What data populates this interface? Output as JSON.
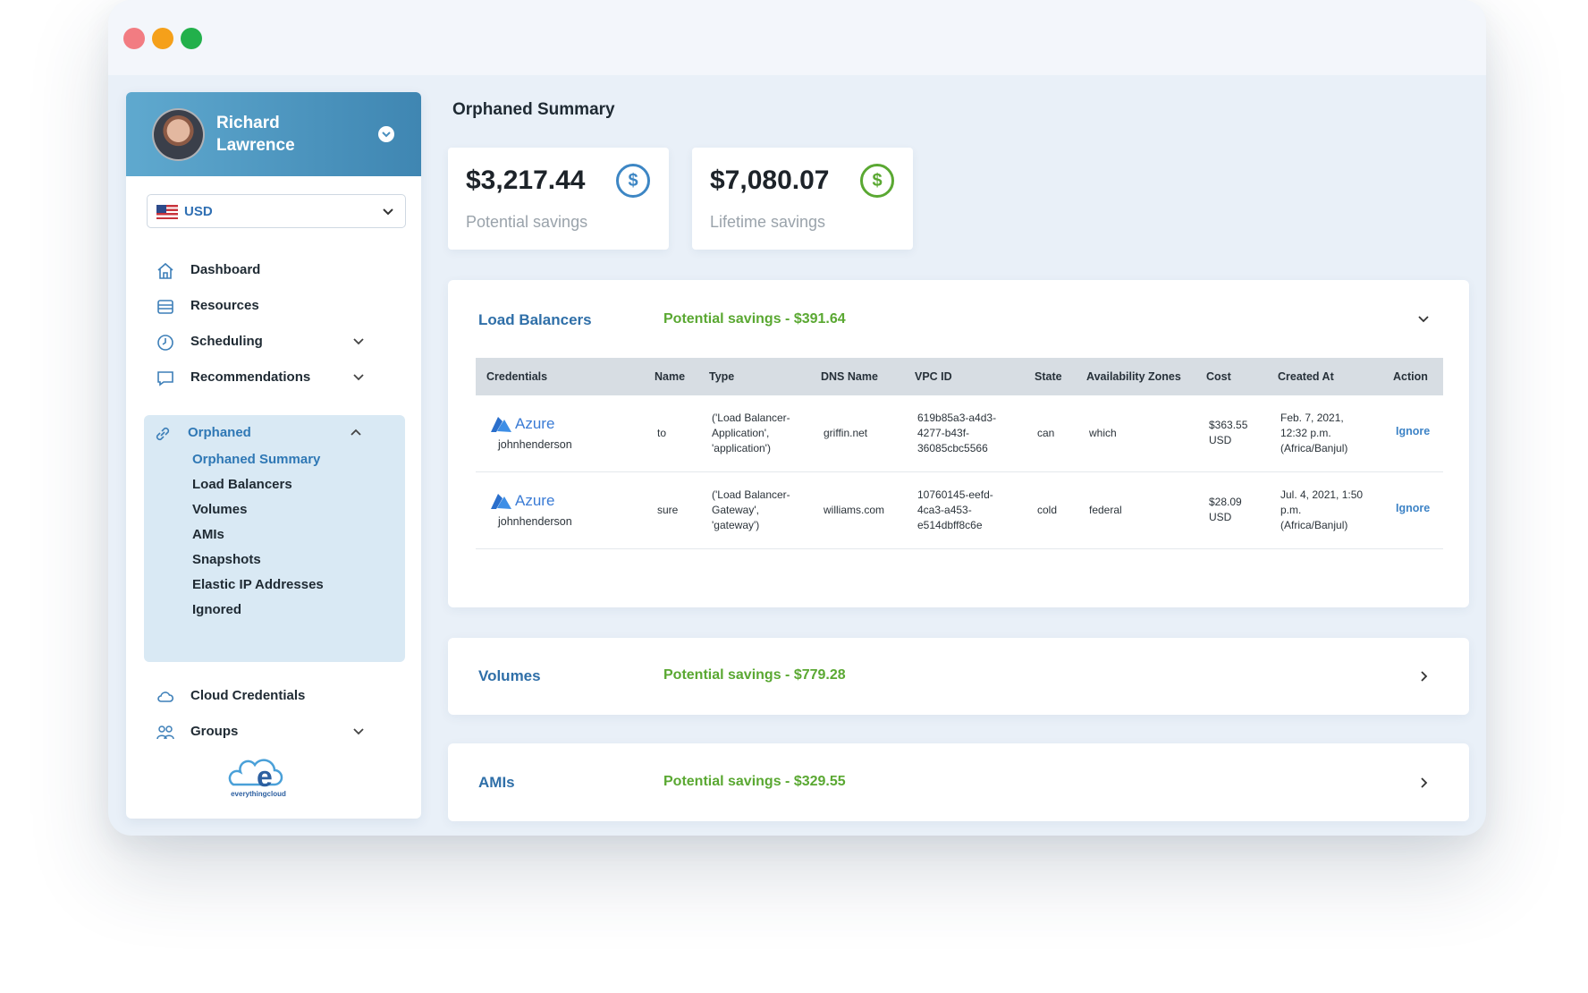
{
  "user": {
    "name": "Richard Lawrence"
  },
  "currency": {
    "selected": "USD"
  },
  "nav": {
    "dashboard": "Dashboard",
    "resources": "Resources",
    "scheduling": "Scheduling",
    "recommendations": "Recommendations",
    "orphaned": "Orphaned",
    "cloud_credentials": "Cloud Credentials",
    "groups": "Groups"
  },
  "orphaned_sub": [
    "Orphaned Summary",
    "Load Balancers",
    "Volumes",
    "AMIs",
    "Snapshots",
    "Elastic IP Addresses",
    "Ignored"
  ],
  "logo": {
    "text": "everythingcloud",
    "letter": "e"
  },
  "page": {
    "title": "Orphaned Summary"
  },
  "stats": [
    {
      "value": "$3,217.44",
      "label": "Potential savings",
      "icon": "dollar-icon",
      "color": "#3d86c4"
    },
    {
      "value": "$7,080.07",
      "label": "Lifetime savings",
      "icon": "dollar-icon",
      "color": "#5aa832"
    }
  ],
  "panels": [
    {
      "title": "Load Balancers",
      "savings": "Potential savings - $391.64",
      "expanded": true
    },
    {
      "title": "Volumes",
      "savings": "Potential savings - $779.28",
      "expanded": false
    },
    {
      "title": "AMIs",
      "savings": "Potential savings - $329.55",
      "expanded": false
    }
  ],
  "table": {
    "headers": [
      "Credentials",
      "Name",
      "Type",
      "DNS Name",
      "VPC ID",
      "State",
      "Availability Zones",
      "Cost",
      "Created At",
      "Action"
    ],
    "rows": [
      {
        "provider": "Azure",
        "credential": "johnhenderson",
        "name": "to",
        "type": [
          "('Load Balancer-",
          "Application',",
          "'application')"
        ],
        "dns": "griffin.net",
        "vpc": [
          "619b85a3-a4d3-",
          "4277-b43f-",
          "36085cbc5566"
        ],
        "state": "can",
        "zones": "which",
        "cost": [
          "$363.55",
          "USD"
        ],
        "created": [
          "Feb. 7, 2021,",
          "12:32 p.m.",
          "(Africa/Banjul)"
        ],
        "action": "Ignore"
      },
      {
        "provider": "Azure",
        "credential": "johnhenderson",
        "name": "sure",
        "type": [
          "('Load Balancer-",
          "Gateway',",
          "'gateway')"
        ],
        "dns": "williams.com",
        "vpc": [
          "10760145-eefd-",
          "4ca3-a453-",
          "e514dbff8c6e"
        ],
        "state": "cold",
        "zones": "federal",
        "cost": [
          "$28.09",
          "USD"
        ],
        "created": [
          "Jul. 4, 2021, 1:50",
          "p.m.",
          "(Africa/Banjul)"
        ],
        "action": "Ignore"
      }
    ]
  },
  "colors": {
    "accent": "#2f78b5",
    "savings_green": "#5aa832",
    "header_gradient_start": "#5fa9cf",
    "header_gradient_end": "#3f86b2",
    "dot_red": "#f27c82",
    "dot_yellow": "#f5a01a",
    "dot_green": "#22b04b"
  }
}
